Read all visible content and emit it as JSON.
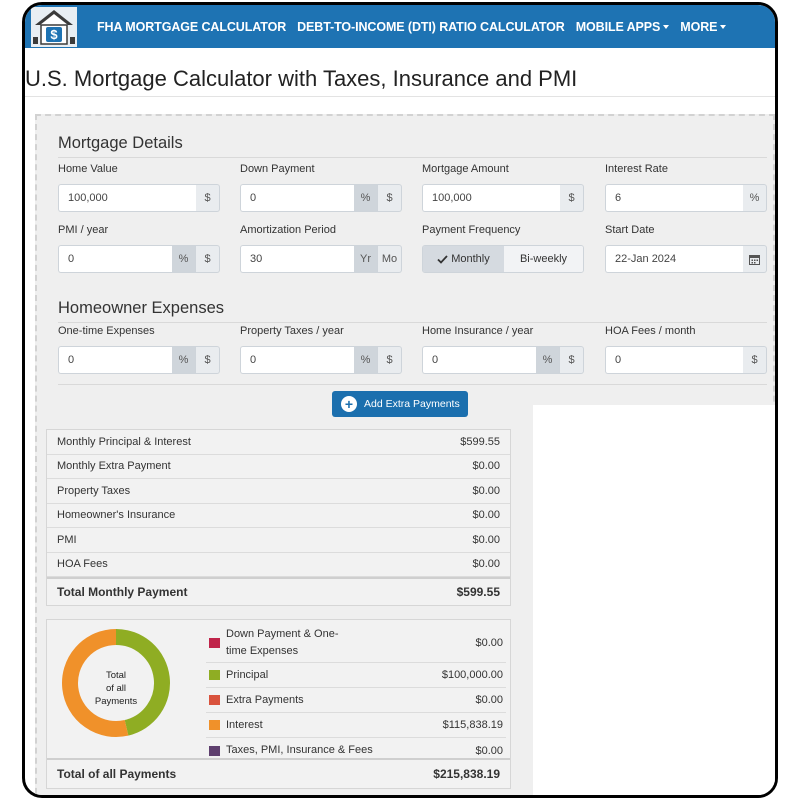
{
  "nav": {
    "links": [
      {
        "label": "FHA MORTGAGE CALCULATOR"
      },
      {
        "label": "DEBT-TO-INCOME (DTI) RATIO CALCULATOR"
      },
      {
        "label": "MOBILE APPS"
      },
      {
        "label": "MORE"
      }
    ]
  },
  "title": "U.S. Mortgage Calculator with Taxes, Insurance and PMI",
  "mortgage": {
    "heading": "Mortgage Details",
    "home_value": {
      "label": "Home Value",
      "value": "100,000",
      "addon": "$"
    },
    "down_payment": {
      "label": "Down Payment",
      "value": "0",
      "addon_pct": "%",
      "addon_usd": "$"
    },
    "mortgage_amount": {
      "label": "Mortgage Amount",
      "value": "100,000",
      "addon": "$"
    },
    "interest_rate": {
      "label": "Interest Rate",
      "value": "6",
      "addon": "%"
    },
    "pmi": {
      "label": "PMI / year",
      "value": "0",
      "addon_pct": "%",
      "addon_usd": "$"
    },
    "amortization": {
      "label": "Amortization Period",
      "value": "30",
      "addon_yr": "Yr",
      "addon_mo": "Mo"
    },
    "frequency": {
      "label": "Payment Frequency",
      "monthly": "Monthly",
      "biweekly": "Bi-weekly",
      "selected": "Monthly"
    },
    "start_date": {
      "label": "Start Date",
      "value": "22-Jan 2024"
    }
  },
  "expenses": {
    "heading": "Homeowner Expenses",
    "one_time": {
      "label": "One-time Expenses",
      "value": "0",
      "addon_pct": "%",
      "addon_usd": "$"
    },
    "property_tax": {
      "label": "Property Taxes / year",
      "value": "0",
      "addon_pct": "%",
      "addon_usd": "$"
    },
    "insurance": {
      "label": "Home Insurance / year",
      "value": "0",
      "addon_pct": "%",
      "addon_usd": "$"
    },
    "hoa": {
      "label": "HOA Fees / month",
      "value": "0",
      "addon_usd": "$"
    }
  },
  "extra_button": "Add Extra Payments",
  "summary": {
    "rows": [
      {
        "label": "Monthly Principal & Interest",
        "value": "$599.55"
      },
      {
        "label": "Monthly Extra Payment",
        "value": "$0.00"
      },
      {
        "label": "Property Taxes",
        "value": "$0.00"
      },
      {
        "label": "Homeowner's Insurance",
        "value": "$0.00"
      },
      {
        "label": "PMI",
        "value": "$0.00"
      },
      {
        "label": "HOA Fees",
        "value": "$0.00"
      }
    ],
    "total_label": "Total Monthly Payment",
    "total_value": "$599.55"
  },
  "payments": {
    "donut_label": [
      "Total",
      "of all",
      "Payments"
    ],
    "legend": [
      {
        "label": "Down Payment & One-time Expenses",
        "value": "$0.00",
        "color": "#c0244a",
        "amount": 0
      },
      {
        "label": "Principal",
        "value": "$100,000.00",
        "color": "#8fad23",
        "amount": 100000
      },
      {
        "label": "Extra Payments",
        "value": "$0.00",
        "color": "#d9533d",
        "amount": 0
      },
      {
        "label": "Interest",
        "value": "$115,838.19",
        "color": "#f0912a",
        "amount": 115838.19
      },
      {
        "label": "Taxes, PMI, Insurance & Fees",
        "value": "$0.00",
        "color": "#5e3f6e",
        "amount": 0
      }
    ],
    "total_label": "Total of all Payments",
    "total_value": "$215,838.19"
  },
  "colors": {
    "nav": "#1e73b3",
    "button": "#1b6fae"
  }
}
